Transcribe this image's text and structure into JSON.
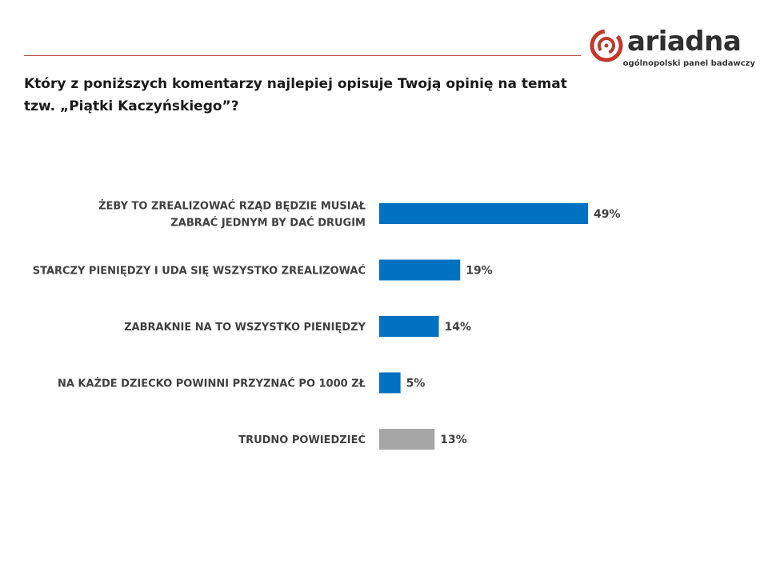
{
  "logo": {
    "brand": "ariadna",
    "tagline": "ogólnopolski panel badawczy",
    "mark_color": "#c0392b"
  },
  "question": "Który z poniższych komentarzy najlepiej opisuje Twoją opinię na temat tzw. „Piątki Kaczyńskiego”?",
  "colors": {
    "rule": "#c0504d",
    "bar_primary": "#0070c0",
    "bar_secondary": "#a6a6a6"
  },
  "chart_data": {
    "type": "bar",
    "orientation": "horizontal",
    "categories": [
      "ŻEBY TO ZREALIZOWAĆ RZĄD BĘDZIE MUSIAŁ ZABRAĆ JEDNYM BY DAĆ DRUGIM",
      "STARCZY PIENIĘDZY I UDA SIĘ WSZYSTKO ZREALIZOWAĆ",
      "ZABRAKNIE NA TO WSZYSTKO PIENIĘDZY",
      "NA KAŻDE DZIECKO POWINNI PRZYZNAĆ PO 1000 ZŁ",
      "TRUDNO POWIEDZIEĆ"
    ],
    "label_lines": [
      [
        "ŻEBY TO ZREALIZOWAĆ RZĄD BĘDZIE MUSIAŁ",
        "ZABRAĆ JEDNYM BY DAĆ DRUGIM"
      ],
      [
        "STARCZY PIENIĘDZY I UDA SIĘ WSZYSTKO ZREALIZOWAĆ"
      ],
      [
        "ZABRAKNIE NA TO WSZYSTKO PIENIĘDZY"
      ],
      [
        "NA KAŻDE DZIECKO POWINNI PRZYZNAĆ PO 1000 ZŁ"
      ],
      [
        "TRUDNO POWIEDZIEĆ"
      ]
    ],
    "values": [
      49,
      19,
      14,
      5,
      13
    ],
    "value_labels": [
      "49%",
      "19%",
      "14%",
      "5%",
      "13%"
    ],
    "bar_colors": [
      "#0070c0",
      "#0070c0",
      "#0070c0",
      "#0070c0",
      "#a6a6a6"
    ],
    "unit": "%",
    "xlim": [
      0,
      100
    ],
    "grid": false,
    "legend": "none"
  }
}
